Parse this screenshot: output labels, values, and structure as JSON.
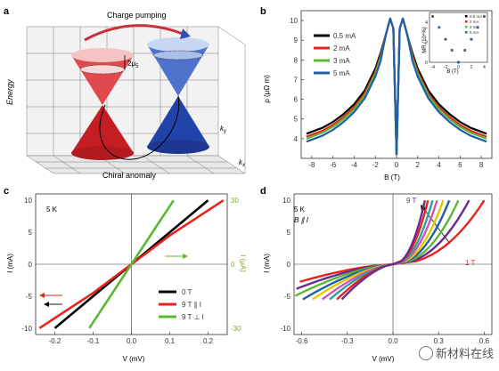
{
  "panels": {
    "a": {
      "label": "a",
      "energy_label": "Energy",
      "charge_pumping": "Charge pumping",
      "chiral_anomaly": "Chiral anomaly",
      "mu5": "2μ",
      "mu5_sub": "5",
      "kx": "k",
      "kx_sub": "x",
      "ky": "k",
      "ky_sub": "y",
      "colors": {
        "left_cone": "#d9262b",
        "right_cone": "#2b4fb5",
        "arrow": "#c8323a"
      }
    },
    "b": {
      "label": "b",
      "ylabel": "ρ (μΩ m)",
      "xlabel": "B (T)",
      "inset_ylabel": "MR (10⁴%)",
      "inset_xlabel": "B (T)"
    },
    "c": {
      "label": "c",
      "temp": "5 K",
      "ylabel": "I (mA)",
      "xlabel": "V (mV)",
      "right_ylabel": "I (μA)"
    },
    "d": {
      "label": "d",
      "temp": "5 K",
      "cond": "B ∥ I",
      "ylabel": "I (mA)",
      "xlabel": "V (mV)",
      "ann_9T": "9 T",
      "ann_1T": "1 T"
    }
  },
  "watermark": "新材料在线",
  "chart_data": [
    {
      "type": "line",
      "panel": "b",
      "xlabel": "B (T)",
      "ylabel": "ρ (μΩ m)",
      "xlim": [
        -9,
        9
      ],
      "ylim": [
        3,
        10.5
      ],
      "xticks": [
        -8,
        -6,
        -4,
        -2,
        0,
        2,
        4,
        6,
        8
      ],
      "yticks": [
        4,
        5,
        6,
        7,
        8,
        9,
        10
      ],
      "legend": "top-left",
      "series": [
        {
          "name": "0.5 mA",
          "color": "#000000"
        },
        {
          "name": "2 mA",
          "color": "#e8231e"
        },
        {
          "name": "3 mA",
          "color": "#5cb833"
        },
        {
          "name": "5 mA",
          "color": "#1f5fa8"
        }
      ],
      "x": [
        -8.5,
        -7,
        -6,
        -5,
        -4,
        -3,
        -2,
        -1.5,
        -1,
        -0.6,
        -0.3,
        0,
        0.3,
        0.6,
        1,
        1.5,
        2,
        3,
        4,
        5,
        6,
        7,
        8.5
      ],
      "y": [
        4.0,
        4.3,
        4.6,
        5.0,
        5.5,
        6.2,
        7.3,
        8.1,
        9.3,
        10.1,
        9.6,
        3.2,
        9.6,
        10.1,
        9.3,
        8.1,
        7.3,
        6.2,
        5.5,
        5.0,
        4.6,
        4.3,
        4.0
      ]
    },
    {
      "type": "line",
      "panel": "b-inset",
      "xlabel": "B (T)",
      "ylabel": "MR (10⁴%)",
      "xlim": [
        -4.5,
        4.5
      ],
      "ylim": [
        0,
        5
      ],
      "xticks": [
        -4,
        -2,
        0,
        2,
        4
      ],
      "yticks": [
        0,
        2,
        4
      ],
      "legend": "top-right",
      "series": [
        {
          "name": "0.5 mA",
          "color": "#000000",
          "marker": "square"
        },
        {
          "name": "2 mA",
          "color": "#e8231e",
          "marker": "circle"
        },
        {
          "name": "3 mA",
          "color": "#5cb833",
          "marker": "triangle"
        },
        {
          "name": "5 mA",
          "color": "#1f5fa8",
          "marker": "diamond"
        }
      ],
      "x": [
        -4,
        -3,
        -2,
        -1,
        0,
        1,
        2,
        3,
        4
      ],
      "y": [
        4.6,
        3.5,
        2.3,
        1.2,
        0,
        1.2,
        2.3,
        3.5,
        4.6
      ]
    },
    {
      "type": "line",
      "panel": "c",
      "xlabel": "V (mV)",
      "ylabel": "I (mA)",
      "y2label": "I (μA)",
      "xlim": [
        -0.25,
        0.25
      ],
      "ylim": [
        -11,
        11
      ],
      "y2lim": [
        -33,
        33
      ],
      "xticks": [
        -0.2,
        -0.1,
        0.0,
        0.1,
        0.2
      ],
      "yticks": [
        -10,
        -5,
        0,
        5,
        10
      ],
      "y2ticks": [
        -30,
        0,
        30
      ],
      "legend": "bottom-right",
      "series": [
        {
          "name": "0 T",
          "color": "#000000",
          "x": [
            -0.2,
            0.2
          ],
          "y": [
            -10,
            10
          ]
        },
        {
          "name": "9 T ∥ I",
          "color": "#e8231e",
          "x": [
            -0.24,
            -0.1,
            0,
            0.1,
            0.24
          ],
          "y": [
            -10,
            -4.5,
            0,
            4.5,
            10
          ]
        },
        {
          "name": "9 T ⊥ I",
          "color": "#5cb833",
          "x": [
            -0.11,
            0.11
          ],
          "y": [
            -10,
            10
          ]
        }
      ]
    },
    {
      "type": "line",
      "panel": "d",
      "xlabel": "V (mV)",
      "ylabel": "I (mA)",
      "xlim": [
        -0.65,
        0.65
      ],
      "ylim": [
        -11,
        11
      ],
      "xticks": [
        -0.6,
        -0.3,
        0.0,
        0.3,
        0.6
      ],
      "yticks": [
        -10,
        -5,
        0,
        5,
        10
      ],
      "series": [
        {
          "name": "1 T",
          "color": "#e8231e",
          "vscale": 0.6
        },
        {
          "color": "#6a2c91",
          "vscale": 0.5
        },
        {
          "color": "#5cb833",
          "vscale": 0.43
        },
        {
          "color": "#1f5fa8",
          "vscale": 0.37
        },
        {
          "color": "#e6c700",
          "vscale": 0.33
        },
        {
          "color": "#c85ab4",
          "vscale": 0.29
        },
        {
          "color": "#2fa0a0",
          "vscale": 0.26
        },
        {
          "color": "#e8231e",
          "vscale": 0.23
        },
        {
          "name": "9 T",
          "color": "#6a2c91",
          "vscale": 0.21
        }
      ]
    }
  ]
}
